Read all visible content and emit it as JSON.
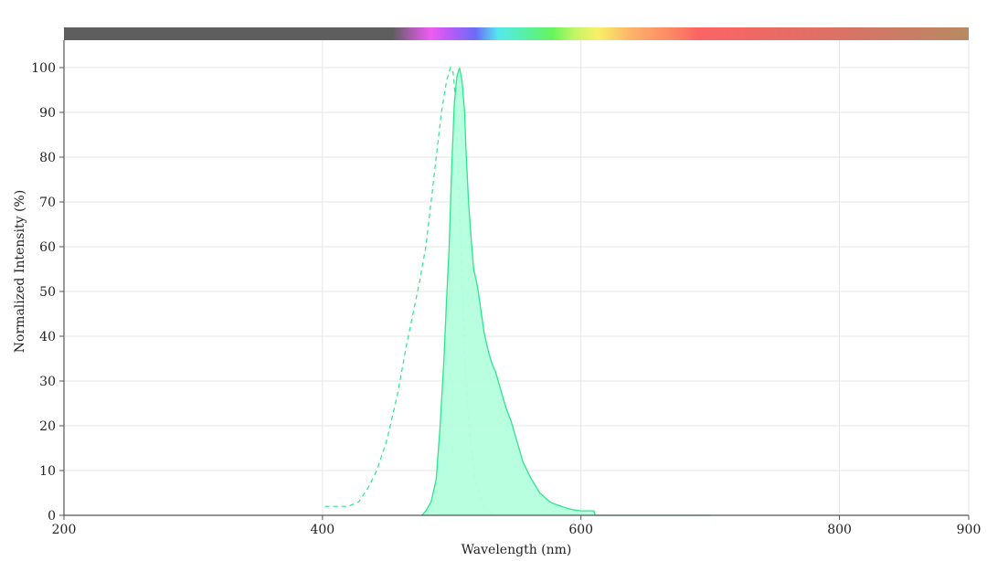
{
  "chart_data": {
    "type": "area",
    "xlabel": "Wavelength (nm)",
    "ylabel": "Normalized Intensity (%)",
    "xlim": [
      200,
      900
    ],
    "ylim": [
      0,
      100
    ],
    "xticks": [
      200,
      400,
      600,
      800,
      900
    ],
    "yticks": [
      0,
      10,
      20,
      30,
      40,
      50,
      60,
      70,
      80,
      90,
      100
    ],
    "grid": true,
    "spectrum_bar": true,
    "series": [
      {
        "kind": "excitation",
        "style": "dashed-line",
        "color": "#2ee58e",
        "x": [
          402,
          410,
          420,
          428,
          435,
          442,
          450,
          458,
          465,
          470,
          475,
          480,
          484,
          488,
          492,
          496,
          499,
          501,
          503,
          505,
          507,
          509,
          511,
          514,
          518,
          522,
          525,
          528,
          532
        ],
        "y": [
          2,
          2,
          2,
          3,
          6,
          10,
          17,
          27,
          38,
          45,
          52,
          60,
          70,
          80,
          90,
          97,
          100,
          99,
          93,
          80,
          62,
          45,
          30,
          18,
          8,
          4,
          2,
          1,
          0
        ]
      },
      {
        "kind": "emission",
        "style": "filled-area",
        "color": "#2ee58e",
        "fill": "#b3ffdd",
        "x": [
          477,
          480,
          484,
          488,
          491,
          494,
          496,
          498,
          500,
          502,
          504,
          506,
          508,
          510,
          511,
          513,
          515,
          517,
          520,
          522,
          525,
          528,
          531,
          534,
          538,
          542,
          546,
          550,
          555,
          560,
          564,
          568,
          572,
          576,
          580,
          585,
          590,
          595,
          600,
          605,
          610,
          611,
          700
        ],
        "y": [
          0,
          1,
          3,
          8,
          20,
          35,
          48,
          60,
          78,
          92,
          98,
          100,
          97,
          90,
          82,
          70,
          62,
          55,
          51,
          47,
          41,
          37,
          34,
          32,
          28,
          24,
          21,
          17,
          12,
          9,
          7,
          5,
          4,
          3,
          2.5,
          2,
          1.5,
          1.2,
          1,
          1,
          1,
          0,
          0
        ]
      }
    ]
  }
}
